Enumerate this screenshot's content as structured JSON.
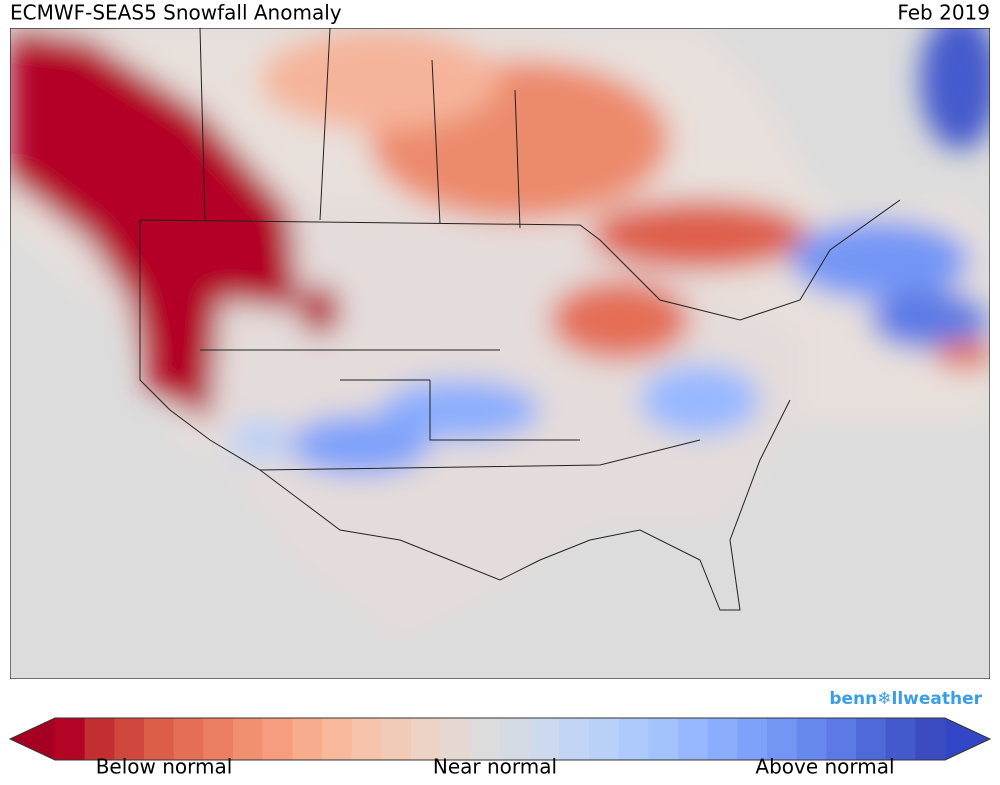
{
  "header": {
    "title": "ECMWF-SEAS5 Snowfall Anomaly",
    "date": "Feb 2019"
  },
  "logo": "benn❄llweather",
  "colorbar": {
    "under_color": "#a50021",
    "over_color": "#3346c8",
    "colors": [
      "#b40426",
      "#c32e31",
      "#d0473d",
      "#dc5d4a",
      "#e46e56",
      "#ec7f63",
      "#f18f71",
      "#f59d7e",
      "#f7ac8e",
      "#f7b89c",
      "#f6c4ac",
      "#f2cbb7",
      "#ecd3c5",
      "#e5d8d1",
      "#dddcdc",
      "#d5dbe5",
      "#cdd9ec",
      "#c3d5f4",
      "#b9d0f9",
      "#aec9fc",
      "#a3c2fe",
      "#97b8ff",
      "#8badfd",
      "#7ea1fa",
      "#7396f5",
      "#6788ee",
      "#5b7ae5",
      "#4f69d9",
      "#445acc",
      "#3b4cc0"
    ],
    "labels": [
      "Below normal",
      "Near normal",
      "Above normal"
    ]
  }
}
